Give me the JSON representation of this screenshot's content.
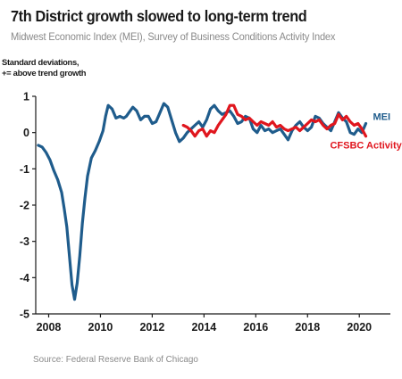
{
  "title": "7th District growth slowed to long-term trend",
  "subtitle": "Midwest Economic Index (MEI), Survey of Business Conditions Activity Index",
  "source": "Source: Federal Reserve Bank of Chicago",
  "colors": {
    "mei": "#1f5c8c",
    "cfsbc": "#e0161e",
    "axis": "#1a1a1a"
  },
  "chart_data": {
    "type": "line",
    "title": "7th District growth slowed to long-term trend",
    "subtitle": "Midwest Economic Index (MEI), Survey of Business Conditions Activity Index",
    "ylabel_lines": [
      "Standard deviations,",
      "+= above trend growth"
    ],
    "xlim": [
      2007.5,
      2021.2
    ],
    "ylim": [
      -5,
      1
    ],
    "x_ticks": [
      2008,
      2010,
      2012,
      2014,
      2016,
      2018,
      2020
    ],
    "x_tick_labels": [
      "2008",
      "2010",
      "2012",
      "2014",
      "2016",
      "2018",
      "2020"
    ],
    "y_ticks": [
      1,
      0,
      -1,
      -2,
      -3,
      -4,
      -5
    ],
    "y_tick_labels": [
      "1",
      "0",
      "-1",
      "-2",
      "-3",
      "-4",
      "-5"
    ],
    "grid": false,
    "series": [
      {
        "name": "MEI",
        "color": "#1f5c8c",
        "x": [
          2007.6,
          2007.75,
          2007.9,
          2008.05,
          2008.2,
          2008.35,
          2008.5,
          2008.6,
          2008.7,
          2008.8,
          2008.9,
          2009.0,
          2009.1,
          2009.2,
          2009.3,
          2009.4,
          2009.5,
          2009.65,
          2009.8,
          2009.95,
          2010.1,
          2010.2,
          2010.3,
          2010.45,
          2010.6,
          2010.75,
          2010.9,
          2011.0,
          2011.1,
          2011.25,
          2011.4,
          2011.55,
          2011.7,
          2011.85,
          2012.0,
          2012.15,
          2012.3,
          2012.45,
          2012.6,
          2012.75,
          2012.9,
          2013.05,
          2013.2,
          2013.35,
          2013.5,
          2013.65,
          2013.8,
          2013.95,
          2014.1,
          2014.25,
          2014.4,
          2014.55,
          2014.7,
          2014.85,
          2015.0,
          2015.15,
          2015.3,
          2015.45,
          2015.6,
          2015.75,
          2015.9,
          2016.05,
          2016.2,
          2016.35,
          2016.5,
          2016.65,
          2016.8,
          2016.95,
          2017.1,
          2017.25,
          2017.4,
          2017.55,
          2017.7,
          2017.85,
          2018.0,
          2018.15,
          2018.3,
          2018.45,
          2018.6,
          2018.75,
          2018.9,
          2019.05,
          2019.2,
          2019.35,
          2019.5,
          2019.65,
          2019.8,
          2019.95,
          2020.1,
          2020.25
        ],
        "y": [
          -0.35,
          -0.4,
          -0.55,
          -0.75,
          -1.05,
          -1.3,
          -1.65,
          -2.1,
          -2.6,
          -3.4,
          -4.2,
          -4.6,
          -4.15,
          -3.4,
          -2.5,
          -1.8,
          -1.2,
          -0.7,
          -0.5,
          -0.25,
          0.05,
          0.45,
          0.75,
          0.65,
          0.4,
          0.45,
          0.4,
          0.45,
          0.55,
          0.7,
          0.6,
          0.35,
          0.45,
          0.45,
          0.25,
          0.3,
          0.55,
          0.8,
          0.7,
          0.35,
          0.0,
          -0.25,
          -0.15,
          0.0,
          0.1,
          0.2,
          0.3,
          0.15,
          0.35,
          0.65,
          0.75,
          0.6,
          0.5,
          0.55,
          0.6,
          0.45,
          0.25,
          0.3,
          0.45,
          0.4,
          0.1,
          0.0,
          0.2,
          0.05,
          0.1,
          0.0,
          0.05,
          0.1,
          -0.05,
          -0.2,
          0.05,
          0.2,
          0.3,
          0.15,
          0.05,
          0.15,
          0.45,
          0.4,
          0.25,
          0.15,
          0.05,
          0.3,
          0.55,
          0.4,
          0.3,
          0.0,
          -0.05,
          0.1,
          0.0,
          0.25
        ]
      },
      {
        "name": "CFSBC Activity Index",
        "color": "#e0161e",
        "x": [
          2013.2,
          2013.35,
          2013.5,
          2013.65,
          2013.8,
          2013.95,
          2014.1,
          2014.25,
          2014.4,
          2014.55,
          2014.7,
          2014.85,
          2015.0,
          2015.15,
          2015.3,
          2015.45,
          2015.6,
          2015.75,
          2015.9,
          2016.05,
          2016.2,
          2016.35,
          2016.5,
          2016.65,
          2016.8,
          2016.95,
          2017.1,
          2017.25,
          2017.4,
          2017.55,
          2017.7,
          2017.85,
          2018.0,
          2018.15,
          2018.3,
          2018.45,
          2018.6,
          2018.75,
          2018.9,
          2019.05,
          2019.2,
          2019.35,
          2019.5,
          2019.65,
          2019.8,
          2019.95,
          2020.1,
          2020.25
        ],
        "y": [
          0.2,
          0.15,
          0.05,
          -0.1,
          0.05,
          0.1,
          -0.1,
          0.05,
          0.0,
          0.2,
          0.35,
          0.5,
          0.75,
          0.75,
          0.5,
          0.45,
          0.35,
          0.4,
          0.3,
          0.2,
          0.3,
          0.25,
          0.2,
          0.3,
          0.15,
          0.2,
          0.1,
          0.05,
          0.1,
          0.15,
          0.05,
          0.15,
          0.25,
          0.35,
          0.3,
          0.35,
          0.2,
          0.1,
          0.2,
          0.25,
          0.5,
          0.35,
          0.45,
          0.3,
          0.2,
          0.25,
          0.1,
          -0.1
        ]
      }
    ]
  }
}
